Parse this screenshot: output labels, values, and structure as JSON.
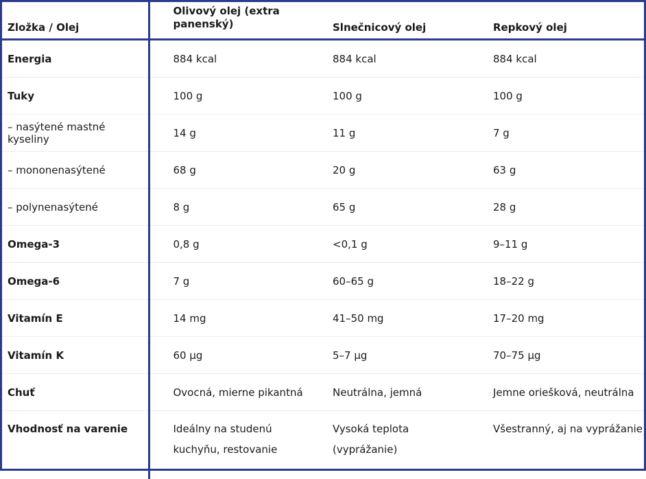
{
  "header": {
    "col0": "Zložka / Olej",
    "col1": "Olivový olej (extra panenský)",
    "col2": "Slnečnicový olej",
    "col3": "Repkový olej"
  },
  "rows": [
    {
      "label": "Energia",
      "sub": false,
      "olive": "884 kcal",
      "sunflower": "884 kcal",
      "rapeseed": "884 kcal"
    },
    {
      "label": "Tuky",
      "sub": false,
      "olive": "100 g",
      "sunflower": "100 g",
      "rapeseed": "100 g"
    },
    {
      "label": "– nasýtené mastné kyseliny",
      "sub": true,
      "olive": "14 g",
      "sunflower": "11 g",
      "rapeseed": "7 g"
    },
    {
      "label": "– mononenasýtené",
      "sub": true,
      "olive": "68 g",
      "sunflower": "20 g",
      "rapeseed": "63 g"
    },
    {
      "label": "– polynenasýtené",
      "sub": true,
      "olive": "8 g",
      "sunflower": "65 g",
      "rapeseed": "28 g"
    },
    {
      "label": "Omega-3",
      "sub": false,
      "olive": "0,8 g",
      "sunflower": "<0,1 g",
      "rapeseed": "9–11 g"
    },
    {
      "label": "Omega-6",
      "sub": false,
      "olive": "7 g",
      "sunflower": "60–65 g",
      "rapeseed": "18–22 g"
    },
    {
      "label": "Vitamín E",
      "sub": false,
      "olive": "14 mg",
      "sunflower": "41–50 mg",
      "rapeseed": "17–20 mg"
    },
    {
      "label": "Vitamín K",
      "sub": false,
      "olive": "60 µg",
      "sunflower": "5–7 µg",
      "rapeseed": "70–75 µg"
    },
    {
      "label": "Chuť",
      "sub": false,
      "olive": "Ovocná, mierne pikantná",
      "sunflower": "Neutrálna, jemná",
      "rapeseed": "Jemne oriešková, neutrálna"
    },
    {
      "label": "Vhodnosť na varenie",
      "sub": false,
      "olive": "Ideálny na studenú kuchyňu, restovanie",
      "sunflower": "Vysoká teplota (vyprážanie)",
      "rapeseed": "Všestranný, aj na vyprážanie"
    }
  ],
  "colors": {
    "border": "#2b3a8f",
    "row_divider": "#ececec",
    "text": "#1a1a1a"
  }
}
